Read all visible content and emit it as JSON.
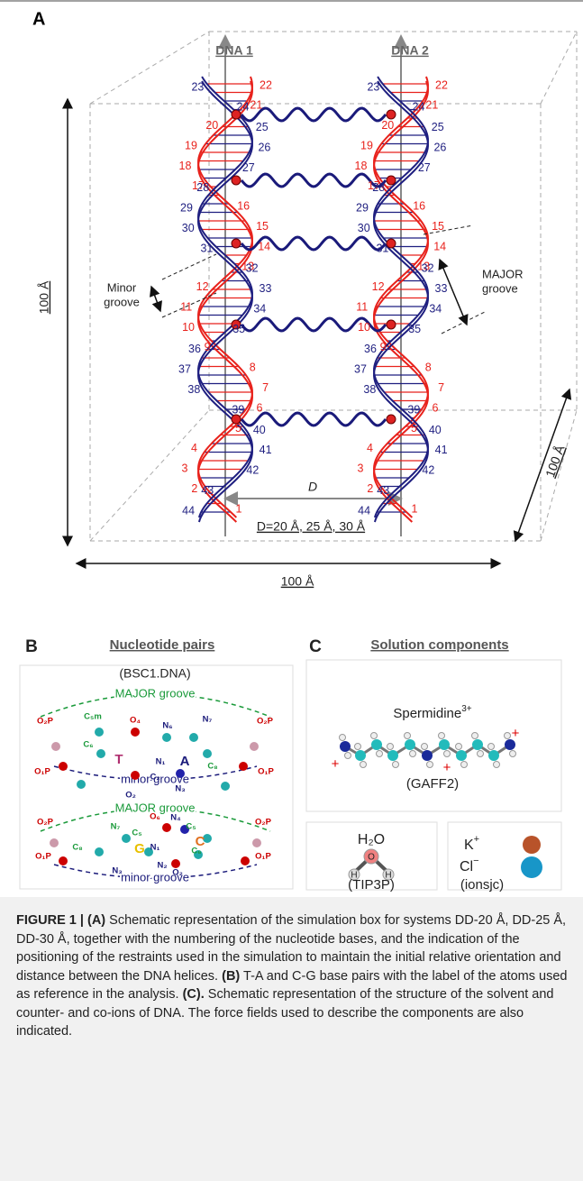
{
  "panel_a": {
    "label": "A",
    "dna_labels": [
      "DNA 1",
      "DNA 2"
    ],
    "height_label": "100 Å",
    "width_label": "100 Å",
    "depth_label": "100 Å",
    "distance_label": "D",
    "distances_label": "D=20 Å, 25 Å, 30 Å",
    "minor_groove": [
      "Minor",
      "groove"
    ],
    "major_groove": [
      "MAJOR",
      "groove"
    ],
    "red_numbers": [
      1,
      2,
      3,
      4,
      5,
      6,
      7,
      8,
      9,
      10,
      11,
      12,
      13,
      14,
      15,
      16,
      17,
      18,
      19,
      20,
      21,
      22
    ],
    "blue_numbers": [
      23,
      24,
      25,
      26,
      27,
      28,
      29,
      30,
      31,
      32,
      33,
      34,
      35,
      36,
      37,
      38,
      39,
      40,
      41,
      42,
      43,
      44
    ]
  },
  "panel_b": {
    "label": "B",
    "title": "Nucleotide pairs",
    "force_field": "(BSC1.DNA)",
    "major_groove": "MAJOR groove",
    "minor_groove": "minor groove",
    "pair_ta": {
      "bases": [
        "T",
        "A"
      ],
      "atoms": [
        "C₅m",
        "O₄",
        "N₆",
        "N₇",
        "C₆",
        "C₈",
        "N₁",
        "C₂",
        "N₃",
        "O₂",
        "O₂P",
        "O₁P",
        "O₂P",
        "O₁P"
      ]
    },
    "pair_cg": {
      "bases": [
        "G",
        "C"
      ],
      "atoms": [
        "N₇",
        "C₅",
        "O₆",
        "N₄",
        "C₅",
        "C₈",
        "C₆",
        "N₁",
        "N₃",
        "N₂",
        "O₂",
        "O₂P",
        "O₁P",
        "O₂P",
        "O₁P"
      ]
    }
  },
  "panel_c": {
    "label": "C",
    "title": "Solution components",
    "spermidine": "Spermidine",
    "spermidine_charge": "3+",
    "spermidine_ff": "(GAFF2)",
    "charges": [
      "+",
      "+",
      "+"
    ],
    "water": "H₂O",
    "water_atoms": [
      "H",
      "O",
      "H"
    ],
    "water_ff": "(TIP3P)",
    "cation": "K",
    "cation_charge": "+",
    "anion": "Cl",
    "anion_charge": "−",
    "ion_ff": "(ionsjc)"
  },
  "caption": {
    "figure": "FIGURE 1 |",
    "parts": [
      {
        "label": "(A)",
        "text": " Schematic representation of the simulation box for systems DD-20 Å, DD-25 Å, DD-30 Å, together with the numbering of the nucleotide bases, and the indication of the positioning of the restraints used in the simulation to maintain the initial relative orientation and distance between the DNA helices. "
      },
      {
        "label": "(B)",
        "text": " T-A and C-G base pairs with the label of the atoms used as reference in the analysis. "
      },
      {
        "label": "(C).",
        "text": " Schematic representation of the structure of the solvent and counter- and co-ions of DNA. The force fields used to describe the components are also indicated."
      }
    ]
  }
}
